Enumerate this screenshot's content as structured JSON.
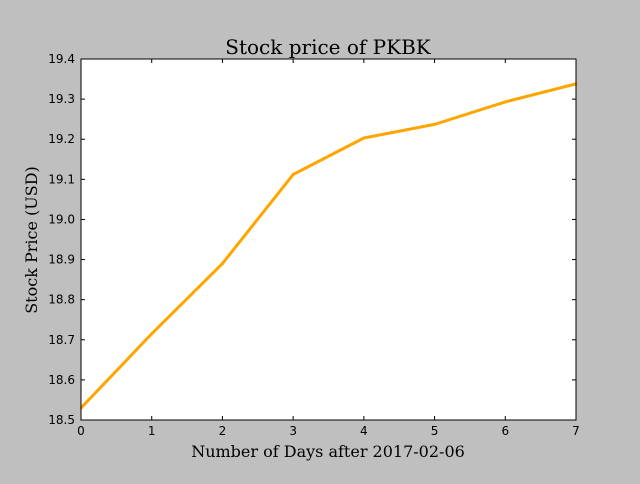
{
  "chart_data": {
    "type": "line",
    "title": "Stock price of PKBK",
    "xlabel": "Number of Days after 2017-02-06",
    "ylabel": "Stock Price (USD)",
    "x": [
      0,
      1,
      2,
      3,
      4,
      5,
      6,
      7
    ],
    "series": [
      {
        "color": "#ffa500",
        "values": [
          18.53,
          18.715,
          18.89,
          19.112,
          19.203,
          19.237,
          19.293,
          19.338
        ]
      }
    ],
    "xlim": [
      0,
      7
    ],
    "ylim": [
      18.5,
      19.4
    ],
    "x_ticks": [
      "0",
      "1",
      "2",
      "3",
      "4",
      "5",
      "6",
      "7"
    ],
    "y_ticks": [
      "18.5",
      "18.6",
      "18.7",
      "18.8",
      "18.9",
      "19.0",
      "19.1",
      "19.2",
      "19.3",
      "19.4"
    ],
    "grid": false,
    "legend": "none",
    "background_color": "#bfbfbf",
    "plot_background_color": "#ffffff"
  }
}
